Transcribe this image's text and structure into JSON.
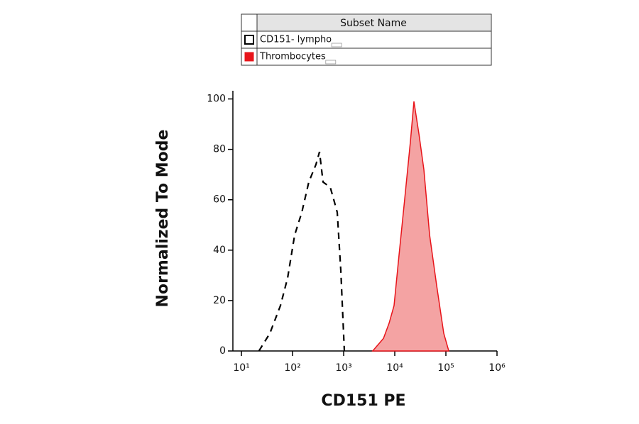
{
  "chart_data": {
    "type": "histogram-overlay",
    "legend_header": "Subset Name",
    "xlabel": "CD151 PE",
    "ylabel": "Normalized To Mode",
    "xscale": "log",
    "xlim": [
      6.8,
      1000000
    ],
    "ylim": [
      0,
      105.5
    ],
    "xticks": [
      {
        "value": 10,
        "label": "10¹"
      },
      {
        "value": 100,
        "label": "10²"
      },
      {
        "value": 1000,
        "label": "10³"
      },
      {
        "value": 10000,
        "label": "10⁴"
      },
      {
        "value": 100000,
        "label": "10⁵"
      },
      {
        "value": 1000000,
        "label": "10⁶"
      }
    ],
    "yticks": [
      0,
      20,
      40,
      60,
      80,
      100
    ],
    "series": [
      {
        "name": "CD151- lympho",
        "color": "#000000",
        "fill_color": "none",
        "line_style": "dashed",
        "x": [
          22,
          36,
          58,
          80,
          110,
          152,
          208,
          287,
          337,
          395,
          464,
          545,
          640,
          750,
          880,
          1030
        ],
        "values": [
          0,
          7,
          18,
          29,
          46,
          55,
          67,
          74,
          79,
          67,
          66,
          65,
          60,
          55,
          32,
          0
        ]
      },
      {
        "name": "Thrombocytes",
        "color": "#e8141a",
        "fill_color": "#f4a3a3",
        "line_style": "solid",
        "x": [
          3700,
          6000,
          7740,
          9690,
          12100,
          15600,
          20200,
          23700,
          29700,
          37100,
          48000,
          65900,
          90800,
          114000
        ],
        "values": [
          0,
          5,
          11,
          18,
          38,
          60,
          83,
          99,
          86,
          72,
          46,
          26,
          7,
          0
        ]
      }
    ]
  }
}
